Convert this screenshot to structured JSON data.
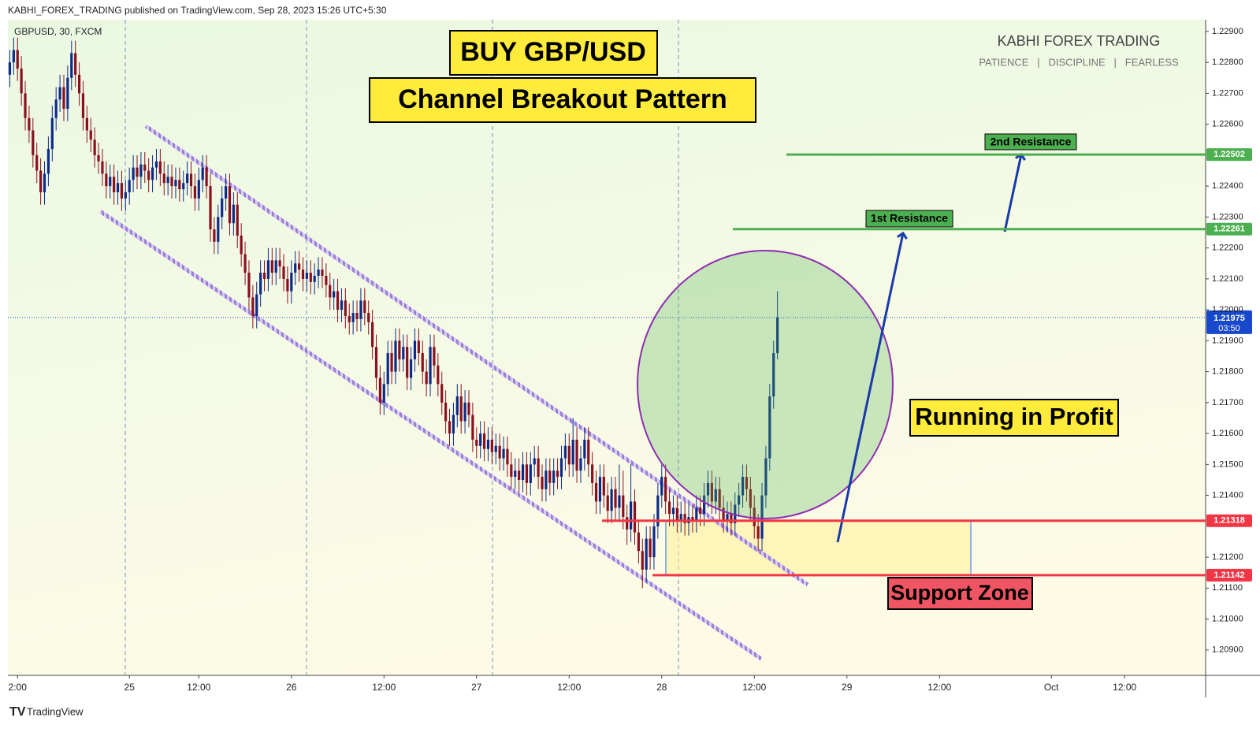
{
  "header": {
    "published": "KABHI_FOREX_TRADING published on TradingView.com, Sep 28, 2023 15:26 UTC+5:30"
  },
  "footer": {
    "brand": "TradingView"
  },
  "chart_data": {
    "type": "candlestick",
    "symbol": "GBPUSD, 30, FXCM",
    "up_color": "#0d2a8a",
    "down_color": "#8a1020",
    "annotations": {
      "title": "BUY GBP/USD",
      "subtitle": "Channel Breakout Pattern",
      "status": "Running in Profit",
      "support": "Support Zone",
      "brand": "KABHI FOREX TRADING",
      "motto": "PATIENCE   |   DISCIPLINE   |   FEARLESS"
    },
    "xlim": [
      -0.5,
      310
    ],
    "xticks": [
      {
        "value": 2,
        "label": "2:00"
      },
      {
        "value": 31,
        "label": "25"
      },
      {
        "value": 49,
        "label": "12:00"
      },
      {
        "value": 73,
        "label": "26"
      },
      {
        "value": 97,
        "label": "12:00"
      },
      {
        "value": 121,
        "label": "27"
      },
      {
        "value": 145,
        "label": "12:00"
      },
      {
        "value": 169,
        "label": "28"
      },
      {
        "value": 193,
        "label": "12:00"
      },
      {
        "value": 217,
        "label": "29"
      },
      {
        "value": 241,
        "label": "12:00"
      },
      {
        "value": 270,
        "label": "Oct"
      },
      {
        "value": 289,
        "label": "12:00"
      }
    ],
    "ylim": [
      1.20818,
      1.22938
    ],
    "yticks": [
      {
        "value": 1.229,
        "label": "1.22900"
      },
      {
        "value": 1.228,
        "label": "1.22800"
      },
      {
        "value": 1.227,
        "label": "1.22700"
      },
      {
        "value": 1.226,
        "label": "1.22600"
      },
      {
        "value": 1.224,
        "label": "1.22400"
      },
      {
        "value": 1.223,
        "label": "1.22300"
      },
      {
        "value": 1.222,
        "label": "1.22200"
      },
      {
        "value": 1.221,
        "label": "1.22100"
      },
      {
        "value": 1.22,
        "label": "1.22000"
      },
      {
        "value": 1.219,
        "label": "1.21900"
      },
      {
        "value": 1.218,
        "label": "1.21800"
      },
      {
        "value": 1.217,
        "label": "1.21700"
      },
      {
        "value": 1.216,
        "label": "1.21600"
      },
      {
        "value": 1.215,
        "label": "1.21500"
      },
      {
        "value": 1.214,
        "label": "1.21400"
      },
      {
        "value": 1.212,
        "label": "1.21200"
      },
      {
        "value": 1.211,
        "label": "1.21100"
      },
      {
        "value": 1.21,
        "label": "1.21000"
      },
      {
        "value": 1.209,
        "label": "1.20900"
      }
    ],
    "levels": [
      {
        "name": "2nd Resistance",
        "value": 1.22502,
        "color": "#4caf50"
      },
      {
        "name": "1st Resistance",
        "value": 1.22261,
        "color": "#4caf50"
      },
      {
        "value": 1.21318,
        "color": "#f23645"
      },
      {
        "value": 1.21142,
        "color": "#f23645"
      }
    ],
    "current": {
      "value": 1.21975,
      "countdown": "03:50",
      "color": "#1848cc"
    },
    "open": [
      1.2276,
      1.228,
      1.2284,
      1.2278,
      1.227,
      1.2262,
      1.2258,
      1.225,
      1.2245,
      1.2238,
      1.2244,
      1.2252,
      1.2262,
      1.2268,
      1.2272,
      1.2265,
      1.2275,
      1.2283,
      1.2276,
      1.227,
      1.2262,
      1.2258,
      1.2255,
      1.225,
      1.2248,
      1.2244,
      1.224,
      1.2243,
      1.2238,
      1.2241,
      1.2236,
      1.2238,
      1.2242,
      1.2246,
      1.2243,
      1.2247,
      1.2245,
      1.2242,
      1.2246,
      1.2248,
      1.2244,
      1.2241,
      1.2243,
      1.224,
      1.2242,
      1.2239,
      1.2241,
      1.2244,
      1.224,
      1.2236,
      1.2242,
      1.2246,
      1.224,
      1.2226,
      1.2222,
      1.223,
      1.2236,
      1.224,
      1.2228,
      1.2234,
      1.2224,
      1.2218,
      1.2212,
      1.2204,
      1.2198,
      1.2205,
      1.2212,
      1.221,
      1.2216,
      1.2212,
      1.2216,
      1.2214,
      1.221,
      1.2206,
      1.2212,
      1.2215,
      1.2213,
      1.221,
      1.2212,
      1.2209,
      1.2211,
      1.2213,
      1.2211,
      1.2208,
      1.2204,
      1.2206,
      1.22,
      1.2203,
      1.2198,
      1.2196,
      1.2199,
      1.2197,
      1.2203,
      1.2199,
      1.2196,
      1.2188,
      1.2178,
      1.217,
      1.2176,
      1.2186,
      1.218,
      1.219,
      1.2184,
      1.2188,
      1.2178,
      1.2184,
      1.219,
      1.2186,
      1.218,
      1.2176,
      1.2188,
      1.2182,
      1.2176,
      1.217,
      1.2164,
      1.216,
      1.2166,
      1.2172,
      1.2164,
      1.217,
      1.2166,
      1.2158,
      1.2156,
      1.216,
      1.2155,
      1.2158,
      1.2154,
      1.2156,
      1.2152,
      1.2155,
      1.215,
      1.2146,
      1.2148,
      1.2145,
      1.215,
      1.2144,
      1.215,
      1.2152,
      1.2146,
      1.2142,
      1.2148,
      1.2144,
      1.2148,
      1.2146,
      1.2152,
      1.2156,
      1.215,
      1.2158,
      1.2148,
      1.2152,
      1.2158,
      1.215,
      1.2144,
      1.2138,
      1.2146,
      1.214,
      1.2135,
      1.2142,
      1.2136,
      1.214,
      1.2133,
      1.2129,
      1.2138,
      1.2128,
      1.2122,
      1.2116,
      1.2126,
      1.212,
      1.213,
      1.214,
      1.2146,
      1.2138,
      1.2134,
      1.2136,
      1.2132,
      1.2134,
      1.2131,
      1.2133,
      1.2132,
      1.2136,
      1.2134,
      1.214,
      1.2144,
      1.2138,
      1.2142,
      1.2136,
      1.2132,
      1.2134,
      1.2131,
      1.2137,
      1.214,
      1.2146,
      1.2142,
      1.2136,
      1.213,
      1.2126,
      1.214,
      1.2152,
      1.2172,
      1.2186
    ],
    "high": [
      1.2284,
      1.2288,
      1.2288,
      1.2282,
      1.2274,
      1.2266,
      1.2262,
      1.2254,
      1.2249,
      1.2248,
      1.2256,
      1.2266,
      1.2272,
      1.2276,
      1.2276,
      1.2279,
      1.2287,
      1.2287,
      1.228,
      1.2274,
      1.2266,
      1.2262,
      1.2259,
      1.2254,
      1.2252,
      1.2248,
      1.2247,
      1.2247,
      1.2245,
      1.2245,
      1.2242,
      1.2246,
      1.225,
      1.225,
      1.2251,
      1.2251,
      1.2249,
      1.225,
      1.2252,
      1.2252,
      1.2248,
      1.2247,
      1.2247,
      1.2246,
      1.2246,
      1.2245,
      1.2248,
      1.2248,
      1.2244,
      1.2246,
      1.225,
      1.225,
      1.2244,
      1.223,
      1.2234,
      1.224,
      1.2244,
      1.2244,
      1.2238,
      1.2238,
      1.2228,
      1.2222,
      1.2216,
      1.2208,
      1.2209,
      1.2216,
      1.2216,
      1.222,
      1.222,
      1.222,
      1.222,
      1.2218,
      1.2214,
      1.2216,
      1.2219,
      1.2219,
      1.2217,
      1.2216,
      1.2216,
      1.2215,
      1.2217,
      1.2217,
      1.2215,
      1.2212,
      1.221,
      1.221,
      1.2207,
      1.2207,
      1.2202,
      1.2203,
      1.2203,
      1.2207,
      1.2207,
      1.2203,
      1.22,
      1.2192,
      1.2182,
      1.218,
      1.219,
      1.219,
      1.2194,
      1.2194,
      1.2192,
      1.2192,
      1.2188,
      1.2194,
      1.2194,
      1.219,
      1.2184,
      1.2192,
      1.2192,
      1.2186,
      1.218,
      1.2174,
      1.2168,
      1.217,
      1.2176,
      1.2176,
      1.2174,
      1.2174,
      1.217,
      1.2162,
      1.2164,
      1.2164,
      1.2162,
      1.2162,
      1.216,
      1.216,
      1.2159,
      1.2159,
      1.2154,
      1.2152,
      1.2152,
      1.2154,
      1.2154,
      1.2154,
      1.2156,
      1.2156,
      1.215,
      1.2152,
      1.2152,
      1.2152,
      1.2152,
      1.2156,
      1.216,
      1.216,
      1.2165,
      1.2162,
      1.2156,
      1.2162,
      1.2162,
      1.2154,
      1.2148,
      1.215,
      1.215,
      1.2144,
      1.2146,
      1.2146,
      1.215,
      1.2148,
      1.2137,
      1.215,
      1.2142,
      1.2132,
      1.2126,
      1.213,
      1.213,
      1.2134,
      1.2144,
      1.215,
      1.215,
      1.2142,
      1.214,
      1.214,
      1.2138,
      1.2138,
      1.2137,
      1.2137,
      1.214,
      1.214,
      1.2144,
      1.2148,
      1.2148,
      1.2146,
      1.2146,
      1.214,
      1.2138,
      1.2138,
      1.2141,
      1.2144,
      1.215,
      1.215,
      1.2146,
      1.214,
      1.2134,
      1.2144,
      1.2156,
      1.2176,
      1.219,
      1.2206
    ],
    "low": [
      1.2272,
      1.2276,
      1.2274,
      1.2266,
      1.2258,
      1.2254,
      1.2246,
      1.2241,
      1.2234,
      1.2234,
      1.224,
      1.2248,
      1.2258,
      1.2264,
      1.2261,
      1.2261,
      1.2271,
      1.2272,
      1.2266,
      1.2258,
      1.2254,
      1.2251,
      1.2246,
      1.2244,
      1.224,
      1.2236,
      1.2236,
      1.2234,
      1.2234,
      1.2232,
      1.2232,
      1.2234,
      1.2238,
      1.2239,
      1.2239,
      1.2241,
      1.2238,
      1.2238,
      1.2242,
      1.224,
      1.2237,
      1.2237,
      1.2236,
      1.2236,
      1.2235,
      1.2235,
      1.2237,
      1.2236,
      1.2232,
      1.2232,
      1.2238,
      1.2236,
      1.2222,
      1.2218,
      1.2218,
      1.2226,
      1.2232,
      1.2224,
      1.2224,
      1.222,
      1.2214,
      1.2208,
      1.22,
      1.2194,
      1.2194,
      1.2201,
      1.2206,
      1.2206,
      1.2208,
      1.2208,
      1.221,
      1.2206,
      1.2202,
      1.2202,
      1.2208,
      1.2209,
      1.2206,
      1.2206,
      1.2205,
      1.2205,
      1.2207,
      1.2207,
      1.2204,
      1.22,
      1.22,
      1.2196,
      1.2196,
      1.2194,
      1.2192,
      1.2192,
      1.2193,
      1.2193,
      1.2195,
      1.2192,
      1.2184,
      1.2174,
      1.2166,
      1.2166,
      1.2172,
      1.2176,
      1.2176,
      1.218,
      1.218,
      1.2174,
      1.2174,
      1.218,
      1.2182,
      1.2176,
      1.2172,
      1.2172,
      1.2178,
      1.2172,
      1.2166,
      1.216,
      1.2156,
      1.2156,
      1.2162,
      1.216,
      1.216,
      1.2162,
      1.2154,
      1.2152,
      1.2152,
      1.2151,
      1.2151,
      1.215,
      1.215,
      1.2148,
      1.2148,
      1.2146,
      1.2142,
      1.2142,
      1.2141,
      1.2141,
      1.214,
      1.214,
      1.2146,
      1.2142,
      1.2138,
      1.2138,
      1.214,
      1.214,
      1.2142,
      1.2142,
      1.2148,
      1.2146,
      1.2146,
      1.2144,
      1.2144,
      1.2148,
      1.2146,
      1.214,
      1.2134,
      1.2134,
      1.2136,
      1.2131,
      1.2131,
      1.2132,
      1.2132,
      1.2129,
      1.2124,
      1.2125,
      1.2124,
      1.2118,
      1.211,
      1.2112,
      1.2116,
      1.2116,
      1.2126,
      1.2136,
      1.2134,
      1.213,
      1.213,
      1.2128,
      1.2128,
      1.2127,
      1.2127,
      1.2128,
      1.2128,
      1.213,
      1.213,
      1.2136,
      1.2134,
      1.2134,
      1.2132,
      1.2128,
      1.2128,
      1.2127,
      1.2127,
      1.2133,
      1.2136,
      1.2138,
      1.2132,
      1.2126,
      1.2122,
      1.2122,
      1.2136,
      1.2148,
      1.2168,
      1.2184
    ],
    "close": [
      1.228,
      1.2284,
      1.2278,
      1.227,
      1.2262,
      1.2258,
      1.225,
      1.2245,
      1.2238,
      1.2244,
      1.2252,
      1.2262,
      1.2268,
      1.2272,
      1.2265,
      1.2275,
      1.2283,
      1.2276,
      1.227,
      1.2262,
      1.2258,
      1.2255,
      1.225,
      1.2248,
      1.2244,
      1.224,
      1.2243,
      1.2238,
      1.2241,
      1.2236,
      1.2238,
      1.2242,
      1.2246,
      1.2243,
      1.2247,
      1.2245,
      1.2242,
      1.2246,
      1.2248,
      1.2244,
      1.2241,
      1.2243,
      1.224,
      1.2242,
      1.2239,
      1.2241,
      1.2244,
      1.224,
      1.2236,
      1.2242,
      1.2246,
      1.224,
      1.2226,
      1.2222,
      1.223,
      1.2236,
      1.224,
      1.2228,
      1.2234,
      1.2224,
      1.2218,
      1.2212,
      1.2204,
      1.2198,
      1.2205,
      1.2212,
      1.221,
      1.2216,
      1.2212,
      1.2216,
      1.2214,
      1.221,
      1.2206,
      1.2212,
      1.2215,
      1.2213,
      1.221,
      1.2212,
      1.2209,
      1.2211,
      1.2213,
      1.2211,
      1.2208,
      1.2204,
      1.2206,
      1.22,
      1.2203,
      1.2198,
      1.2196,
      1.2199,
      1.2197,
      1.2203,
      1.2199,
      1.2196,
      1.2188,
      1.2178,
      1.217,
      1.2176,
      1.2186,
      1.218,
      1.219,
      1.2184,
      1.2188,
      1.2178,
      1.2184,
      1.219,
      1.2186,
      1.218,
      1.2176,
      1.2188,
      1.2182,
      1.2176,
      1.217,
      1.2164,
      1.216,
      1.2166,
      1.2172,
      1.2164,
      1.217,
      1.2166,
      1.2158,
      1.2156,
      1.216,
      1.2155,
      1.2158,
      1.2154,
      1.2156,
      1.2152,
      1.2155,
      1.215,
      1.2146,
      1.2148,
      1.2145,
      1.215,
      1.2144,
      1.215,
      1.2152,
      1.2146,
      1.2142,
      1.2148,
      1.2144,
      1.2148,
      1.2146,
      1.2152,
      1.2156,
      1.215,
      1.2158,
      1.2148,
      1.2152,
      1.2158,
      1.215,
      1.2144,
      1.2138,
      1.2146,
      1.214,
      1.2135,
      1.2142,
      1.2136,
      1.214,
      1.2133,
      1.2129,
      1.2138,
      1.2128,
      1.2122,
      1.2116,
      1.2126,
      1.212,
      1.213,
      1.214,
      1.2146,
      1.2138,
      1.2134,
      1.2136,
      1.2132,
      1.2134,
      1.2131,
      1.2133,
      1.2132,
      1.2136,
      1.2134,
      1.214,
      1.2144,
      1.2138,
      1.2142,
      1.2136,
      1.2132,
      1.2134,
      1.2131,
      1.2137,
      1.214,
      1.2146,
      1.2142,
      1.2136,
      1.213,
      1.2126,
      1.214,
      1.2152,
      1.2172,
      1.2186,
      1.21975
    ]
  }
}
